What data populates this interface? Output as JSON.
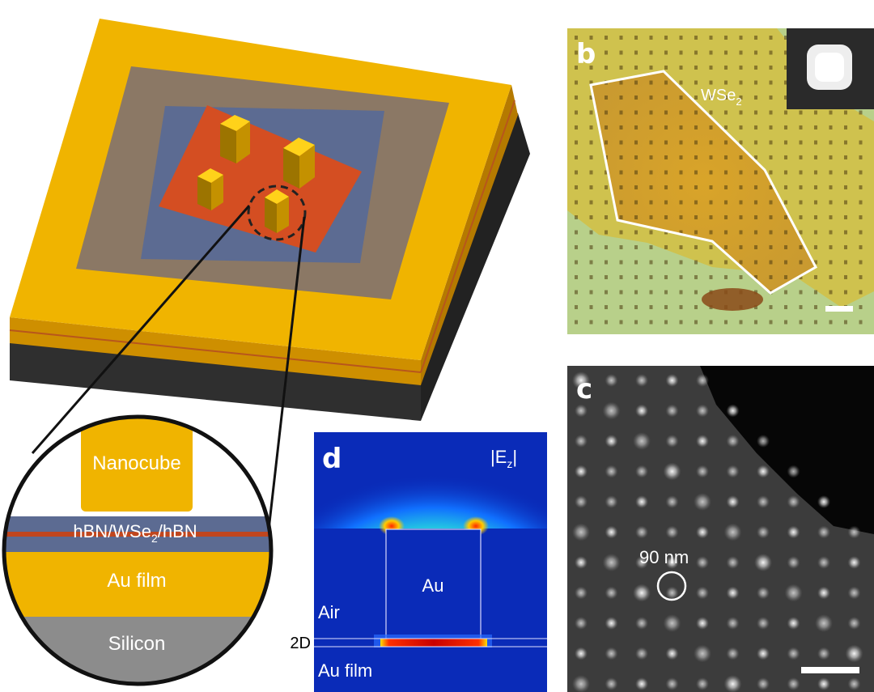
{
  "figure": {
    "panel_a": {
      "inset_labels": {
        "nanocube": "Nanocube",
        "spacer_pre": "hBN/WSe",
        "spacer_sub": "2",
        "spacer_post": "/hBN",
        "au_film": "Au film",
        "silicon": "Silicon"
      }
    },
    "panel_b": {
      "letter": "b",
      "flake_label": "WSe",
      "flake_label_sub": "2"
    },
    "panel_c": {
      "letter": "c",
      "annotation": "90 nm"
    },
    "panel_d": {
      "letter": "d",
      "field_label_pre": "|E",
      "field_label_sub": "z",
      "field_label_post": "|",
      "air": "Air",
      "au": "Au",
      "layer_2d": "2D",
      "au_film": "Au film"
    },
    "colors": {
      "gold": "#F0B400",
      "gold_side": "#CE8F00",
      "silicon_dark": "#2e2e2e",
      "gray_layer": "#8b7865",
      "hbn_blue": "#5c6b92",
      "wse2_orange": "#d44e22",
      "field_blue": "#0a2bb8"
    }
  }
}
